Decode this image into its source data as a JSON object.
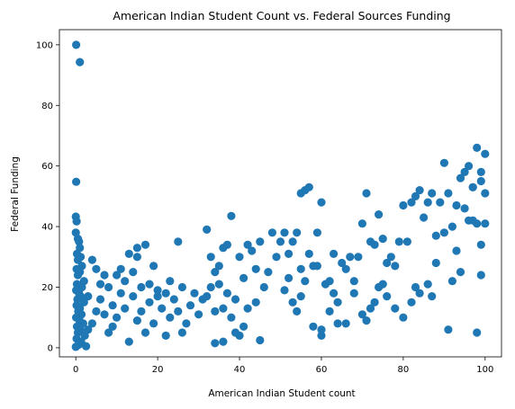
{
  "chart_data": {
    "type": "scatter",
    "title": "American Indian Student Count vs. Federal Sources Funding",
    "xlabel": "American Indian Student count",
    "ylabel": "Federal Funding",
    "xlim": [
      -4,
      104
    ],
    "ylim": [
      -3,
      105
    ],
    "xticks": [
      "0",
      "20",
      "40",
      "60",
      "80",
      "100"
    ],
    "yticks": [
      "0",
      "20",
      "40",
      "60",
      "80",
      "100"
    ],
    "grid": false,
    "marker_color": "#1f77b4",
    "series": [
      {
        "points": [
          [
            0.1,
            100
          ],
          [
            1,
            94.3
          ],
          [
            0.1,
            54.8
          ],
          [
            0,
            43.3
          ],
          [
            0.2,
            41.7
          ],
          [
            0,
            38
          ],
          [
            0.5,
            36
          ],
          [
            0.8,
            35
          ],
          [
            1,
            33
          ],
          [
            0.3,
            31
          ],
          [
            1.2,
            30
          ],
          [
            0.5,
            29
          ],
          [
            1.5,
            27
          ],
          [
            0.2,
            26
          ],
          [
            1,
            25
          ],
          [
            0.5,
            24
          ],
          [
            2,
            22
          ],
          [
            0.3,
            21
          ],
          [
            1.5,
            20
          ],
          [
            0.1,
            19
          ],
          [
            0.8,
            18
          ],
          [
            1.2,
            17
          ],
          [
            0.4,
            16
          ],
          [
            2,
            15
          ],
          [
            0.2,
            14
          ],
          [
            1,
            13
          ],
          [
            0.6,
            12
          ],
          [
            1.4,
            11
          ],
          [
            0.1,
            10
          ],
          [
            0.9,
            9
          ],
          [
            1.8,
            8
          ],
          [
            0.3,
            7
          ],
          [
            1.1,
            6
          ],
          [
            0.5,
            5
          ],
          [
            2.2,
            4
          ],
          [
            0.2,
            3
          ],
          [
            1.3,
            2
          ],
          [
            0.7,
            1
          ],
          [
            0,
            0.3
          ],
          [
            2.5,
            0.5
          ],
          [
            4,
            29
          ],
          [
            5,
            26
          ],
          [
            6,
            21
          ],
          [
            7,
            24
          ],
          [
            3,
            17
          ],
          [
            8,
            20
          ],
          [
            5,
            12
          ],
          [
            6,
            16
          ],
          [
            4,
            8
          ],
          [
            7,
            11
          ],
          [
            3,
            6
          ],
          [
            9,
            14
          ],
          [
            10,
            10
          ],
          [
            8,
            5
          ],
          [
            11,
            18
          ],
          [
            12,
            13
          ],
          [
            9,
            7
          ],
          [
            14,
            17
          ],
          [
            13,
            2
          ],
          [
            15,
            9
          ],
          [
            16,
            12
          ],
          [
            17,
            5
          ],
          [
            18,
            15
          ],
          [
            19,
            8
          ],
          [
            14,
            25
          ],
          [
            15,
            30
          ],
          [
            17,
            34
          ],
          [
            15,
            33
          ],
          [
            13,
            31
          ],
          [
            10,
            24
          ],
          [
            11,
            26
          ],
          [
            12,
            22
          ],
          [
            16,
            20
          ],
          [
            18,
            21
          ],
          [
            20,
            19
          ],
          [
            22,
            18
          ],
          [
            21,
            13
          ],
          [
            23,
            10
          ],
          [
            24,
            16
          ],
          [
            25,
            12
          ],
          [
            26,
            20
          ],
          [
            27,
            8
          ],
          [
            28,
            14
          ],
          [
            29,
            18
          ],
          [
            30,
            11
          ],
          [
            31,
            16
          ],
          [
            26,
            5
          ],
          [
            22,
            4
          ],
          [
            20,
            17
          ],
          [
            23,
            22
          ],
          [
            25,
            35
          ],
          [
            19,
            27
          ],
          [
            32,
            39
          ],
          [
            33,
            20
          ],
          [
            34,
            25
          ],
          [
            35,
            21
          ],
          [
            36,
            13
          ],
          [
            37,
            34
          ],
          [
            36,
            33
          ],
          [
            33,
            30
          ],
          [
            35,
            27
          ],
          [
            32,
            17
          ],
          [
            34,
            12
          ],
          [
            38,
            10
          ],
          [
            39,
            16
          ],
          [
            37,
            18
          ],
          [
            40,
            30
          ],
          [
            41,
            23
          ],
          [
            42,
            34
          ],
          [
            43,
            32
          ],
          [
            44,
            26
          ],
          [
            45,
            35
          ],
          [
            46,
            20
          ],
          [
            47,
            25
          ],
          [
            48,
            38
          ],
          [
            49,
            30
          ],
          [
            44,
            15
          ],
          [
            42,
            13
          ],
          [
            45,
            2.5
          ],
          [
            38,
            43.5
          ],
          [
            40,
            4
          ],
          [
            41,
            7
          ],
          [
            39,
            5
          ],
          [
            36,
            2
          ],
          [
            34,
            1.5
          ],
          [
            50,
            35
          ],
          [
            51,
            38
          ],
          [
            52,
            31
          ],
          [
            53,
            35
          ],
          [
            54,
            38
          ],
          [
            55,
            51
          ],
          [
            56,
            52
          ],
          [
            57,
            53
          ],
          [
            55,
            26
          ],
          [
            56,
            22
          ],
          [
            58,
            27
          ],
          [
            57,
            31
          ],
          [
            59,
            27
          ],
          [
            60,
            48
          ],
          [
            59,
            38
          ],
          [
            61,
            21
          ],
          [
            62,
            22
          ],
          [
            63,
            18
          ],
          [
            64,
            15
          ],
          [
            60,
            4
          ],
          [
            60,
            6
          ],
          [
            58,
            7
          ],
          [
            62,
            12
          ],
          [
            64,
            8
          ],
          [
            63,
            31
          ],
          [
            52,
            23
          ],
          [
            53,
            15
          ],
          [
            51,
            19
          ],
          [
            54,
            12
          ],
          [
            55,
            17
          ],
          [
            65,
            28
          ],
          [
            66,
            26
          ],
          [
            67,
            30
          ],
          [
            68,
            22
          ],
          [
            69,
            30
          ],
          [
            70,
            41
          ],
          [
            71,
            51
          ],
          [
            72,
            35
          ],
          [
            73,
            34
          ],
          [
            74,
            44
          ],
          [
            75,
            36
          ],
          [
            76,
            28
          ],
          [
            77,
            30
          ],
          [
            78,
            27
          ],
          [
            79,
            35
          ],
          [
            80,
            47
          ],
          [
            81,
            35
          ],
          [
            82,
            48
          ],
          [
            83,
            50
          ],
          [
            84,
            52
          ],
          [
            85,
            43
          ],
          [
            86,
            48
          ],
          [
            87,
            51
          ],
          [
            88,
            37
          ],
          [
            89,
            48
          ],
          [
            90,
            61
          ],
          [
            90,
            38
          ],
          [
            91,
            51
          ],
          [
            92,
            40
          ],
          [
            93,
            47
          ],
          [
            94,
            56
          ],
          [
            95,
            58
          ],
          [
            96,
            60
          ],
          [
            97,
            53
          ],
          [
            98,
            66
          ],
          [
            99,
            58
          ],
          [
            100,
            64
          ],
          [
            100,
            51
          ],
          [
            99,
            55
          ],
          [
            98,
            41
          ],
          [
            97,
            42
          ],
          [
            96,
            42
          ],
          [
            95,
            46
          ],
          [
            94,
            25
          ],
          [
            93,
            32
          ],
          [
            92,
            22
          ],
          [
            91,
            6
          ],
          [
            88,
            28
          ],
          [
            87,
            17
          ],
          [
            86,
            21
          ],
          [
            84,
            18
          ],
          [
            82,
            15
          ],
          [
            80,
            10
          ],
          [
            78,
            13
          ],
          [
            76,
            17
          ],
          [
            75,
            21
          ],
          [
            73,
            15
          ],
          [
            71,
            9
          ],
          [
            70,
            11
          ],
          [
            68,
            18
          ],
          [
            66,
            8
          ],
          [
            72,
            13
          ],
          [
            74,
            20
          ],
          [
            83,
            20
          ],
          [
            99,
            34
          ],
          [
            98,
            5
          ],
          [
            100,
            41
          ],
          [
            99,
            24
          ],
          [
            97,
            53
          ]
        ]
      }
    ]
  }
}
